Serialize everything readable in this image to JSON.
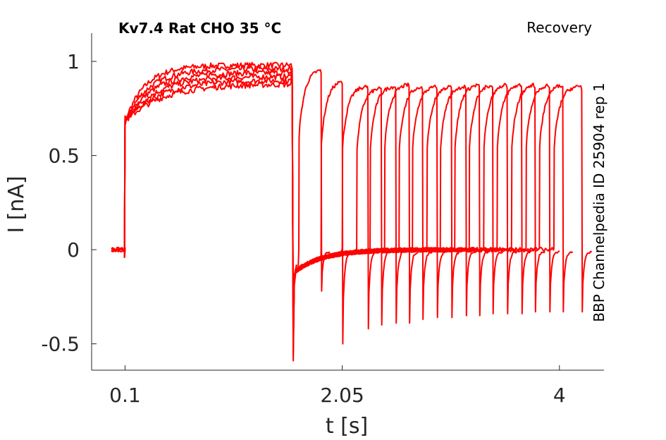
{
  "chart_data": {
    "type": "line",
    "title": "Kv7.4  Rat  CHO  35 °C",
    "subtitle": "Recovery",
    "side_label": "BBP Channelpedia ID 25904 rep 1",
    "xlabel": "t [s]",
    "ylabel": "I [nA]",
    "xlim": [
      -0.2,
      4.4
    ],
    "ylim": [
      -0.64,
      1.15
    ],
    "xticks": [
      0.1,
      2.05,
      4
    ],
    "xtick_labels": [
      "0.1",
      "2.05",
      "4"
    ],
    "yticks": [
      -0.5,
      0,
      0.5,
      1
    ],
    "ytick_labels": [
      "-0.5",
      "0",
      "0.5",
      "1"
    ],
    "grid": false,
    "color": "#ff0000",
    "pulse": {
      "baseline_start": -0.02,
      "step_on": 0.1,
      "step_off": 1.6,
      "onset_current": 0.68,
      "plateau_current": 0.98,
      "off_spike": -0.59
    },
    "recovery_sweeps": [
      {
        "t_on": 1.66,
        "t_off": 1.86,
        "peak": 0.96,
        "tail_min": -0.22
      },
      {
        "t_on": 1.86,
        "t_off": 2.05,
        "peak": 0.9,
        "tail_min": -0.5
      },
      {
        "t_on": 2.05,
        "t_off": 2.28,
        "peak": 0.87,
        "tail_min": -0.42
      },
      {
        "t_on": 2.18,
        "t_off": 2.4,
        "peak": 0.86,
        "tail_min": -0.4
      },
      {
        "t_on": 2.3,
        "t_off": 2.53,
        "peak": 0.87,
        "tail_min": -0.39
      },
      {
        "t_on": 2.43,
        "t_off": 2.65,
        "peak": 0.88,
        "tail_min": -0.39
      },
      {
        "t_on": 2.56,
        "t_off": 2.77,
        "peak": 0.87,
        "tail_min": -0.37
      },
      {
        "t_on": 2.68,
        "t_off": 2.9,
        "peak": 0.87,
        "tail_min": -0.36
      },
      {
        "t_on": 2.81,
        "t_off": 3.03,
        "peak": 0.87,
        "tail_min": -0.36
      },
      {
        "t_on": 2.93,
        "t_off": 3.16,
        "peak": 0.87,
        "tail_min": -0.35
      },
      {
        "t_on": 3.06,
        "t_off": 3.28,
        "peak": 0.88,
        "tail_min": -0.35
      },
      {
        "t_on": 3.19,
        "t_off": 3.4,
        "peak": 0.88,
        "tail_min": -0.34
      },
      {
        "t_on": 3.32,
        "t_off": 3.53,
        "peak": 0.88,
        "tail_min": -0.34
      },
      {
        "t_on": 3.44,
        "t_off": 3.66,
        "peak": 0.88,
        "tail_min": -0.34
      },
      {
        "t_on": 3.57,
        "t_off": 3.78,
        "peak": 0.88,
        "tail_min": -0.33
      },
      {
        "t_on": 3.7,
        "t_off": 3.91,
        "peak": 0.88,
        "tail_min": -0.33
      },
      {
        "t_on": 3.82,
        "t_off": 4.03,
        "peak": 0.88,
        "tail_min": -0.33
      },
      {
        "t_on": 3.95,
        "t_off": 4.2,
        "peak": 0.87,
        "tail_min": -0.33
      }
    ]
  }
}
